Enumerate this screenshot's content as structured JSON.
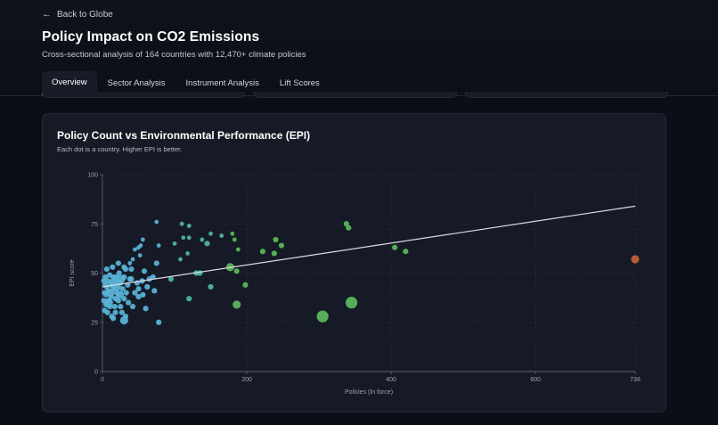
{
  "header": {
    "back_label": "Back to Globe",
    "title": "Policy Impact on CO2 Emissions",
    "subtitle": "Cross-sectional analysis of 164 countries with 12,470+ climate policies"
  },
  "tabs": [
    {
      "label": "Overview",
      "active": true
    },
    {
      "label": "Sector Analysis",
      "active": false
    },
    {
      "label": "Instrument Analysis",
      "active": false
    },
    {
      "label": "Lift Scores",
      "active": false
    }
  ],
  "colors": {
    "accent": "#4fd1c5",
    "low": "#5ab4d9",
    "mid": "#4fb89a",
    "high": "#5cb85c",
    "outlier": "#c0643a",
    "trend": "#d9dbe2"
  },
  "chart_data": {
    "type": "scatter",
    "title": "Policy Count vs Environmental Performance (EPI)",
    "subtitle": "Each dot is a country. Higher EPI is better.",
    "xlabel": "Policies (In force)",
    "ylabel": "EPI score",
    "xlim": [
      0,
      738
    ],
    "ylim": [
      0,
      100
    ],
    "xticks": [
      "0",
      "200",
      "400",
      "600",
      "738"
    ],
    "xtick_values": [
      0,
      200,
      400,
      600,
      738
    ],
    "yticks": [
      "0",
      "25",
      "50",
      "75",
      "100"
    ],
    "ytick_values": [
      0,
      25,
      50,
      75,
      100
    ],
    "grid": true,
    "trendline": {
      "x": [
        0,
        738
      ],
      "y": [
        43,
        84
      ]
    },
    "points": [
      {
        "x": 738,
        "y": 57,
        "size": 2,
        "color": "outlier"
      },
      {
        "x": 345,
        "y": 35,
        "size": 3,
        "color": "high"
      },
      {
        "x": 305,
        "y": 28,
        "size": 3,
        "color": "high"
      },
      {
        "x": 338,
        "y": 75,
        "size": 1,
        "color": "high"
      },
      {
        "x": 341,
        "y": 73,
        "size": 1,
        "color": "high"
      },
      {
        "x": 405,
        "y": 63,
        "size": 1,
        "color": "high"
      },
      {
        "x": 420,
        "y": 61,
        "size": 1,
        "color": "high"
      },
      {
        "x": 222,
        "y": 61,
        "size": 1,
        "color": "high"
      },
      {
        "x": 240,
        "y": 67,
        "size": 1,
        "color": "high"
      },
      {
        "x": 248,
        "y": 64,
        "size": 1,
        "color": "high"
      },
      {
        "x": 238,
        "y": 60,
        "size": 1,
        "color": "high"
      },
      {
        "x": 177,
        "y": 53,
        "size": 2,
        "color": "high"
      },
      {
        "x": 186,
        "y": 51,
        "size": 1,
        "color": "high"
      },
      {
        "x": 198,
        "y": 44,
        "size": 1,
        "color": "high"
      },
      {
        "x": 186,
        "y": 34,
        "size": 2,
        "color": "high"
      },
      {
        "x": 180,
        "y": 70,
        "size": 0,
        "color": "high"
      },
      {
        "x": 183,
        "y": 67,
        "size": 0,
        "color": "high"
      },
      {
        "x": 188,
        "y": 62,
        "size": 0,
        "color": "high"
      },
      {
        "x": 150,
        "y": 70,
        "size": 0,
        "color": "mid"
      },
      {
        "x": 165,
        "y": 69,
        "size": 0,
        "color": "mid"
      },
      {
        "x": 145,
        "y": 65,
        "size": 1,
        "color": "mid"
      },
      {
        "x": 138,
        "y": 67,
        "size": 0,
        "color": "mid"
      },
      {
        "x": 150,
        "y": 43,
        "size": 1,
        "color": "mid"
      },
      {
        "x": 130,
        "y": 50,
        "size": 1,
        "color": "mid"
      },
      {
        "x": 135,
        "y": 50,
        "size": 1,
        "color": "mid"
      },
      {
        "x": 120,
        "y": 68,
        "size": 0,
        "color": "mid"
      },
      {
        "x": 110,
        "y": 75,
        "size": 0,
        "color": "mid"
      },
      {
        "x": 120,
        "y": 74,
        "size": 0,
        "color": "mid"
      },
      {
        "x": 112,
        "y": 68,
        "size": 0,
        "color": "mid"
      },
      {
        "x": 118,
        "y": 60,
        "size": 0,
        "color": "mid"
      },
      {
        "x": 108,
        "y": 57,
        "size": 0,
        "color": "mid"
      },
      {
        "x": 120,
        "y": 37,
        "size": 1,
        "color": "mid"
      },
      {
        "x": 100,
        "y": 65,
        "size": 0,
        "color": "mid"
      },
      {
        "x": 95,
        "y": 47,
        "size": 1,
        "color": "mid"
      },
      {
        "x": 75,
        "y": 76,
        "size": 0,
        "color": "low"
      },
      {
        "x": 78,
        "y": 64,
        "size": 0,
        "color": "low"
      },
      {
        "x": 75,
        "y": 55,
        "size": 1,
        "color": "low"
      },
      {
        "x": 70,
        "y": 48,
        "size": 1,
        "color": "low"
      },
      {
        "x": 72,
        "y": 41,
        "size": 1,
        "color": "low"
      },
      {
        "x": 78,
        "y": 25,
        "size": 1,
        "color": "low"
      },
      {
        "x": 65,
        "y": 47,
        "size": 1,
        "color": "low"
      },
      {
        "x": 60,
        "y": 32,
        "size": 1,
        "color": "low"
      },
      {
        "x": 62,
        "y": 43,
        "size": 1,
        "color": "low"
      },
      {
        "x": 58,
        "y": 51,
        "size": 1,
        "color": "low"
      },
      {
        "x": 56,
        "y": 39,
        "size": 1,
        "color": "low"
      },
      {
        "x": 55,
        "y": 46,
        "size": 1,
        "color": "low"
      },
      {
        "x": 50,
        "y": 38,
        "size": 1,
        "color": "low"
      },
      {
        "x": 50,
        "y": 42,
        "size": 1,
        "color": "low"
      },
      {
        "x": 48,
        "y": 45,
        "size": 1,
        "color": "low"
      },
      {
        "x": 45,
        "y": 40,
        "size": 1,
        "color": "low"
      },
      {
        "x": 52,
        "y": 59,
        "size": 0,
        "color": "low"
      },
      {
        "x": 56,
        "y": 67,
        "size": 0,
        "color": "low"
      },
      {
        "x": 53,
        "y": 64,
        "size": 0,
        "color": "low"
      },
      {
        "x": 50,
        "y": 63,
        "size": 0,
        "color": "low"
      },
      {
        "x": 45,
        "y": 62,
        "size": 0,
        "color": "low"
      },
      {
        "x": 42,
        "y": 57,
        "size": 0,
        "color": "low"
      },
      {
        "x": 38,
        "y": 55,
        "size": 0,
        "color": "low"
      },
      {
        "x": 40,
        "y": 52,
        "size": 1,
        "color": "low"
      },
      {
        "x": 38,
        "y": 47,
        "size": 1,
        "color": "low"
      },
      {
        "x": 35,
        "y": 44,
        "size": 1,
        "color": "low"
      },
      {
        "x": 32,
        "y": 52,
        "size": 1,
        "color": "low"
      },
      {
        "x": 30,
        "y": 48,
        "size": 1,
        "color": "low"
      },
      {
        "x": 28,
        "y": 42,
        "size": 1,
        "color": "low"
      },
      {
        "x": 30,
        "y": 37,
        "size": 1,
        "color": "low"
      },
      {
        "x": 32,
        "y": 28,
        "size": 1,
        "color": "low"
      },
      {
        "x": 30,
        "y": 26,
        "size": 2,
        "color": "low"
      },
      {
        "x": 25,
        "y": 33,
        "size": 1,
        "color": "low"
      },
      {
        "x": 25,
        "y": 45,
        "size": 1,
        "color": "low"
      },
      {
        "x": 23,
        "y": 50,
        "size": 1,
        "color": "low"
      },
      {
        "x": 22,
        "y": 55,
        "size": 1,
        "color": "low"
      },
      {
        "x": 20,
        "y": 40,
        "size": 1,
        "color": "low"
      },
      {
        "x": 20,
        "y": 46,
        "size": 1,
        "color": "low"
      },
      {
        "x": 18,
        "y": 37,
        "size": 1,
        "color": "low"
      },
      {
        "x": 18,
        "y": 30,
        "size": 1,
        "color": "low"
      },
      {
        "x": 15,
        "y": 48,
        "size": 1,
        "color": "low"
      },
      {
        "x": 15,
        "y": 42,
        "size": 1,
        "color": "low"
      },
      {
        "x": 15,
        "y": 27,
        "size": 1,
        "color": "low"
      },
      {
        "x": 14,
        "y": 53,
        "size": 1,
        "color": "low"
      },
      {
        "x": 12,
        "y": 44,
        "size": 1,
        "color": "low"
      },
      {
        "x": 12,
        "y": 38,
        "size": 1,
        "color": "low"
      },
      {
        "x": 10,
        "y": 49,
        "size": 1,
        "color": "low"
      },
      {
        "x": 10,
        "y": 33,
        "size": 1,
        "color": "low"
      },
      {
        "x": 8,
        "y": 46,
        "size": 1,
        "color": "low"
      },
      {
        "x": 8,
        "y": 41,
        "size": 1,
        "color": "low"
      },
      {
        "x": 8,
        "y": 36,
        "size": 1,
        "color": "low"
      },
      {
        "x": 7,
        "y": 30,
        "size": 1,
        "color": "low"
      },
      {
        "x": 6,
        "y": 52,
        "size": 1,
        "color": "low"
      },
      {
        "x": 6,
        "y": 43,
        "size": 1,
        "color": "low"
      },
      {
        "x": 5,
        "y": 39,
        "size": 1,
        "color": "low"
      },
      {
        "x": 5,
        "y": 34,
        "size": 1,
        "color": "low"
      },
      {
        "x": 4,
        "y": 48,
        "size": 1,
        "color": "low"
      },
      {
        "x": 4,
        "y": 44,
        "size": 1,
        "color": "low"
      },
      {
        "x": 3,
        "y": 40,
        "size": 1,
        "color": "low"
      },
      {
        "x": 3,
        "y": 31,
        "size": 1,
        "color": "low"
      },
      {
        "x": 2,
        "y": 36,
        "size": 1,
        "color": "low"
      },
      {
        "x": 2,
        "y": 46,
        "size": 1,
        "color": "low"
      },
      {
        "x": 14,
        "y": 45,
        "size": 2,
        "color": "low"
      },
      {
        "x": 20,
        "y": 43,
        "size": 2,
        "color": "low"
      },
      {
        "x": 11,
        "y": 40,
        "size": 2,
        "color": "low"
      },
      {
        "x": 26,
        "y": 47,
        "size": 2,
        "color": "low"
      },
      {
        "x": 9,
        "y": 35,
        "size": 2,
        "color": "low"
      },
      {
        "x": 33,
        "y": 40,
        "size": 1,
        "color": "low"
      },
      {
        "x": 40,
        "y": 47,
        "size": 1,
        "color": "low"
      },
      {
        "x": 36,
        "y": 35,
        "size": 1,
        "color": "low"
      },
      {
        "x": 42,
        "y": 33,
        "size": 1,
        "color": "low"
      },
      {
        "x": 27,
        "y": 30,
        "size": 1,
        "color": "low"
      },
      {
        "x": 22,
        "y": 36,
        "size": 1,
        "color": "low"
      },
      {
        "x": 17,
        "y": 33,
        "size": 1,
        "color": "low"
      },
      {
        "x": 19,
        "y": 48,
        "size": 1,
        "color": "low"
      },
      {
        "x": 30,
        "y": 53,
        "size": 1,
        "color": "low"
      },
      {
        "x": 24,
        "y": 39,
        "size": 2,
        "color": "low"
      },
      {
        "x": 13,
        "y": 28,
        "size": 1,
        "color": "low"
      }
    ]
  }
}
